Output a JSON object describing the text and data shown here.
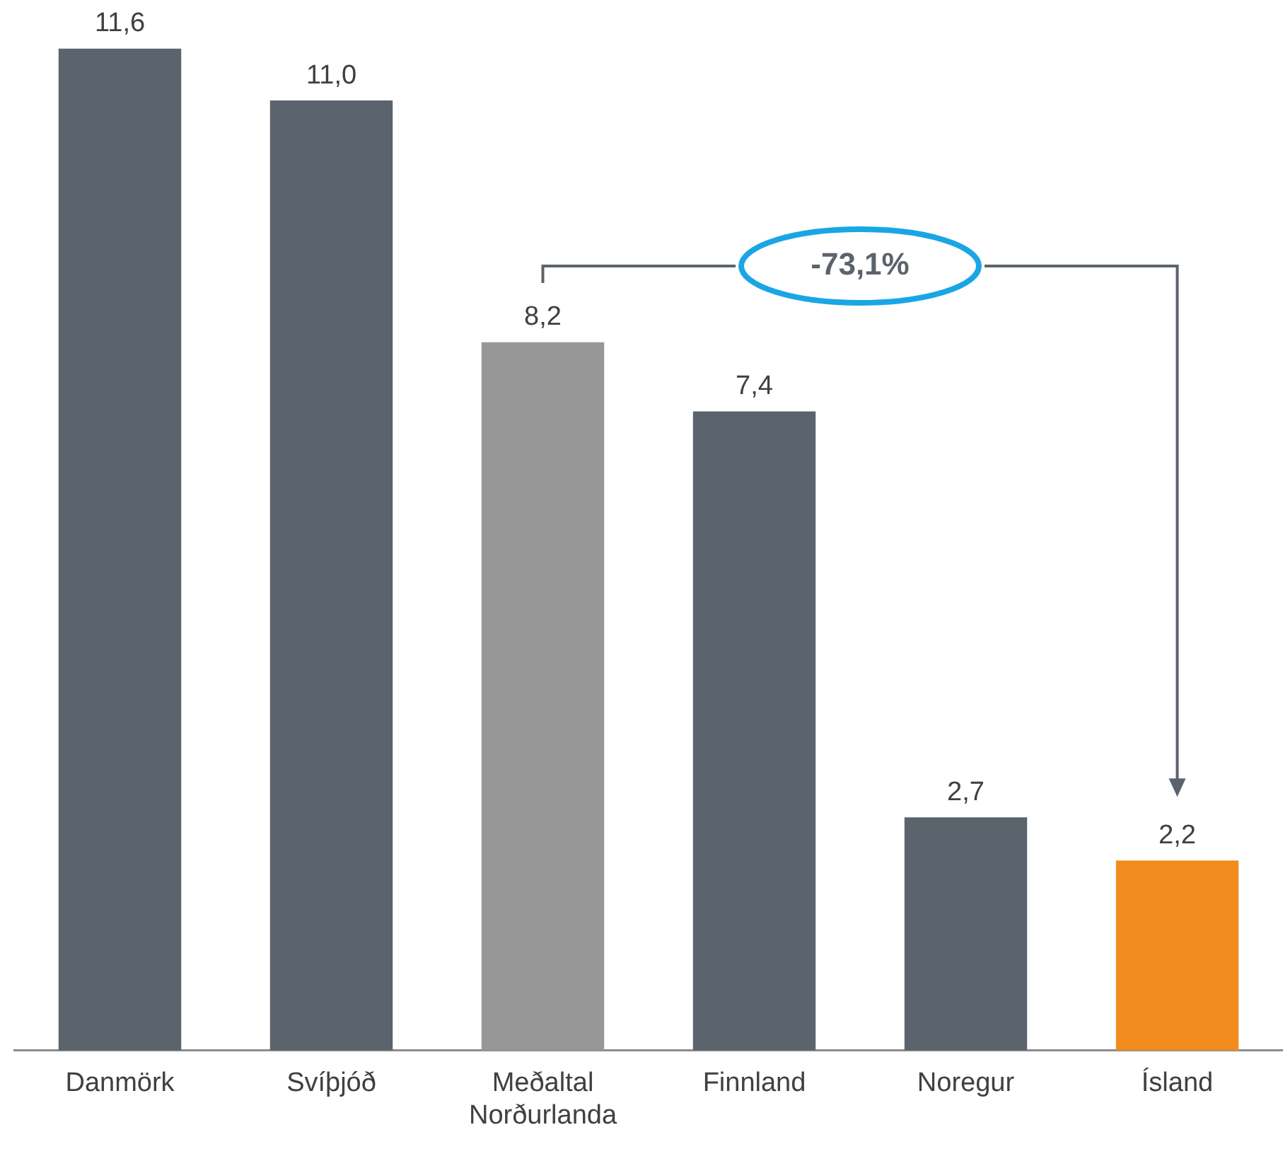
{
  "chart_data": {
    "type": "bar",
    "categories": [
      "Danmörk",
      "Svíþjóð",
      "Meðaltal Norðurlanda",
      "Finnland",
      "Noregur",
      "Ísland"
    ],
    "values": [
      11.6,
      11.0,
      8.2,
      7.4,
      2.7,
      2.2
    ],
    "colors": [
      "#5b636d",
      "#5b636d",
      "#979797",
      "#5b636d",
      "#5b636d",
      "#f28c1e"
    ],
    "value_labels": [
      "11,6",
      "11,0",
      "8,2",
      "7,4",
      "2,7",
      "2,2"
    ],
    "tick_labels": "x",
    "grid": false,
    "legend": false,
    "annotations": [
      "-73,1%"
    ]
  }
}
